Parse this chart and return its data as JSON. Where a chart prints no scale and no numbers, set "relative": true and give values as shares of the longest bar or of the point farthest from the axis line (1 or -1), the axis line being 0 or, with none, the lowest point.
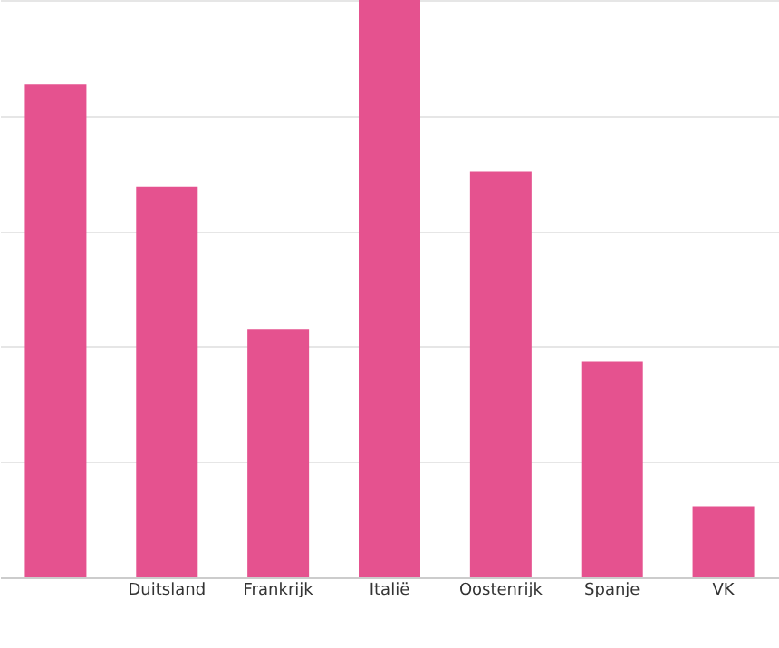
{
  "chart_data": {
    "type": "bar",
    "relative": true,
    "categories": [
      null,
      "Duitsland",
      "Frankrijk",
      "Italië",
      "Oostenrijk",
      "Spanje",
      "VK"
    ],
    "values": [
      0.854,
      0.676,
      0.429,
      1,
      0.703,
      0.374,
      0.123
    ],
    "color": "#e5528f",
    "grid": "y"
  }
}
